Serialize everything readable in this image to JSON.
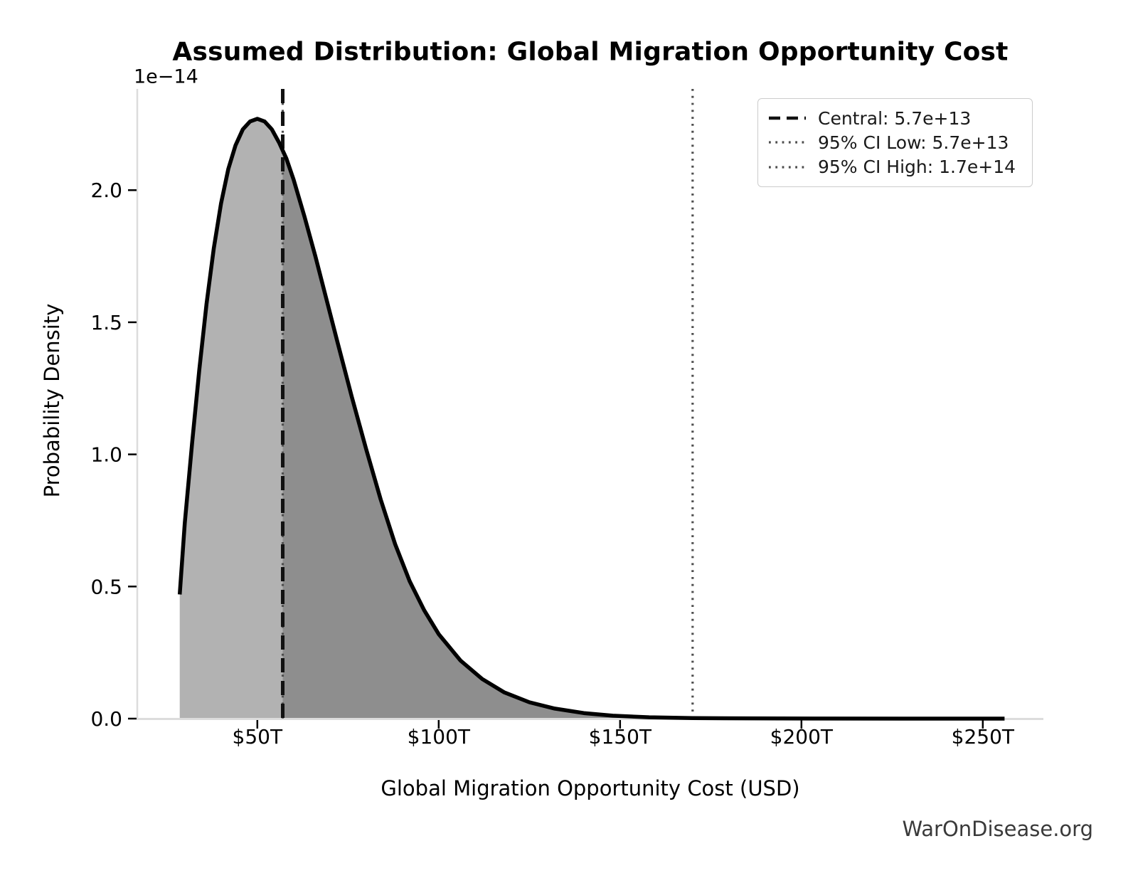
{
  "page": {
    "watermark": "WarOnDisease.org"
  },
  "colors": {
    "fill_left": "#b2b2b2",
    "fill_right": "#8e8e8e",
    "curve": "#000000",
    "central_line": "#111111",
    "ci_line": "#4d4d4d",
    "spine": "#dcdcdc",
    "text": "#000000",
    "watermark": "#3a3a3a"
  },
  "legend": {
    "items": [
      {
        "label": "Central: 5.7e+13",
        "style": "dashed"
      },
      {
        "label": "95% CI Low: 5.7e+13",
        "style": "dotted"
      },
      {
        "label": "95% CI High: 1.7e+14",
        "style": "dotted"
      }
    ]
  },
  "chart_data": {
    "type": "area",
    "title": "Assumed Distribution: Global Migration Opportunity Cost",
    "xlabel": "Global Migration Opportunity Cost (USD)",
    "ylabel": "Probability Density",
    "y_offset_text": "1e−14",
    "x_unit": "trillions of USD",
    "y_unit": "1e-14 per USD",
    "grid": false,
    "legend_position": "upper right",
    "xlim_T": [
      16.9,
      266.7
    ],
    "ylim_1e14": [
      0,
      2.383
    ],
    "x_ticks": [
      {
        "value": 50,
        "label": "$50T"
      },
      {
        "value": 100,
        "label": "$100T"
      },
      {
        "value": 150,
        "label": "$150T"
      },
      {
        "value": 200,
        "label": "$200T"
      },
      {
        "value": 250,
        "label": "$250T"
      }
    ],
    "y_ticks": [
      {
        "value": 0.0,
        "label": "0.0"
      },
      {
        "value": 0.5,
        "label": "0.5"
      },
      {
        "value": 1.0,
        "label": "1.0"
      },
      {
        "value": 1.5,
        "label": "1.5"
      },
      {
        "value": 2.0,
        "label": "2.0"
      }
    ],
    "markers": {
      "central": {
        "value_T": 57,
        "value": "5.7e+13",
        "label": "Central: 5.7e+13",
        "style": "dashed"
      },
      "ci_low": {
        "value_T": 57,
        "value": "5.7e+13",
        "label": "95% CI Low: 5.7e+13",
        "style": "dotted"
      },
      "ci_high": {
        "value_T": 170,
        "value": "1.7e+14",
        "label": "95% CI High: 1.7e+14",
        "style": "dotted"
      }
    },
    "fill_split_T": 57,
    "curve": {
      "x_T": [
        28.6,
        30,
        32,
        34,
        36,
        38,
        40,
        42,
        44,
        46,
        48,
        50,
        52,
        54,
        56,
        58,
        60,
        63,
        66,
        69,
        72,
        76,
        80,
        84,
        88,
        92,
        96,
        100,
        106,
        112,
        118,
        125,
        132,
        140,
        148,
        158,
        170,
        185,
        205,
        230,
        256
      ],
      "density_1e14": [
        0.47,
        0.74,
        1.04,
        1.32,
        1.57,
        1.78,
        1.95,
        2.08,
        2.17,
        2.23,
        2.26,
        2.27,
        2.26,
        2.23,
        2.18,
        2.12,
        2.04,
        1.9,
        1.75,
        1.59,
        1.43,
        1.22,
        1.02,
        0.83,
        0.66,
        0.52,
        0.41,
        0.32,
        0.22,
        0.15,
        0.1,
        0.062,
        0.038,
        0.021,
        0.011,
        0.005,
        0.002,
        0.001,
        0.0004,
        0.0001,
        5e-05
      ]
    }
  }
}
